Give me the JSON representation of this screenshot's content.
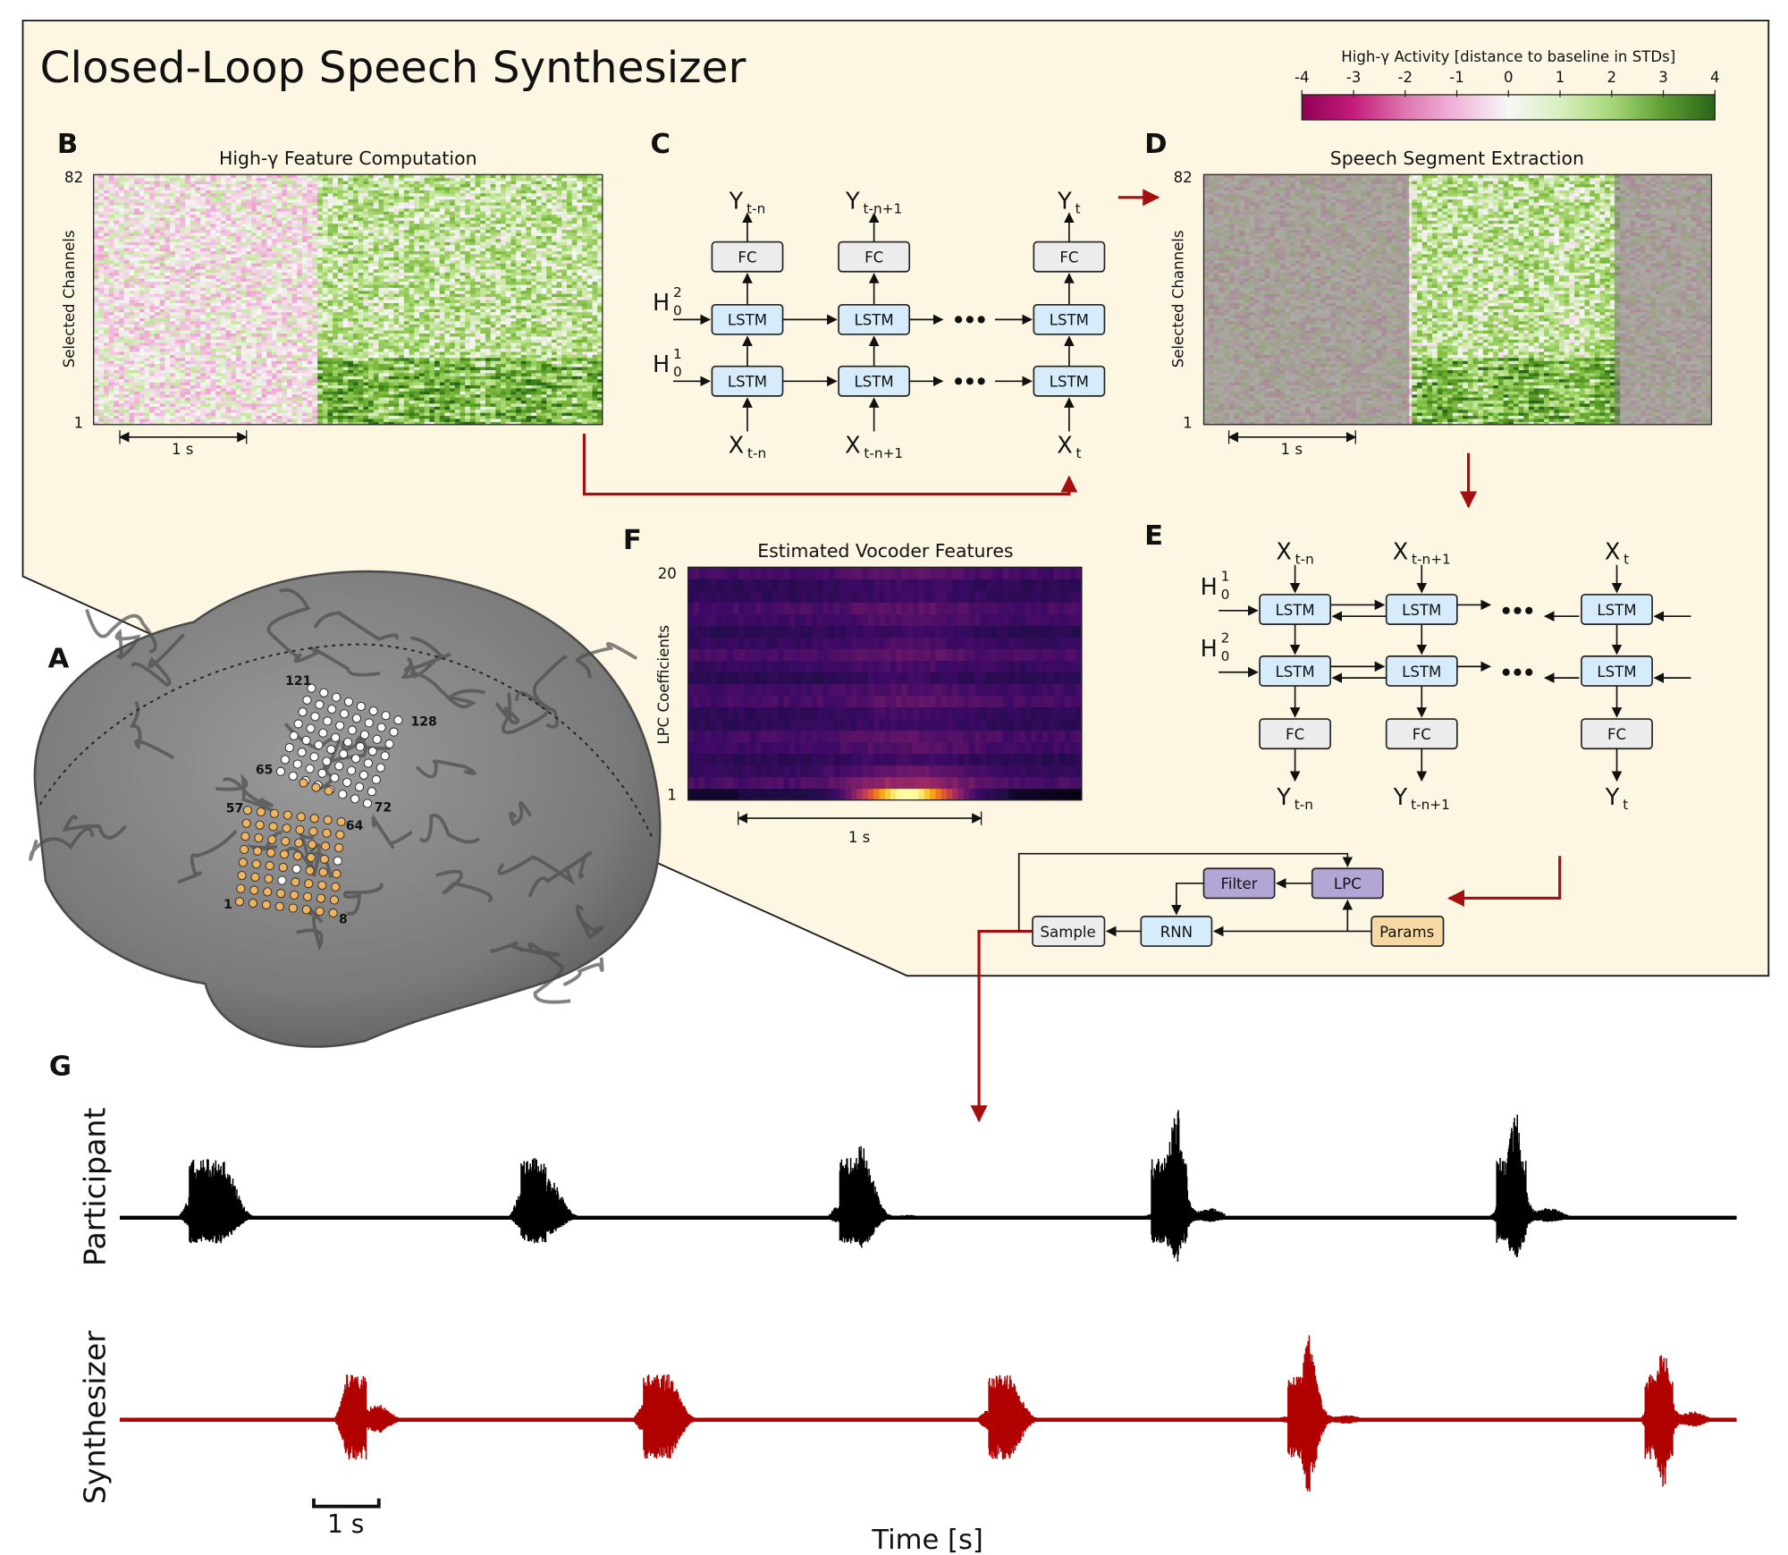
{
  "title": "Closed-Loop Speech Synthesizer",
  "colorbar": {
    "label": "High-γ Activity [distance to baseline in STDs]",
    "ticks": [
      "-4",
      "-3",
      "-2",
      "-1",
      "0",
      "1",
      "2",
      "3",
      "4"
    ],
    "range": [
      -4,
      4
    ],
    "colormap": "PiYG",
    "colors": [
      "#8e0152",
      "#c51b7d",
      "#de77ae",
      "#f1b6da",
      "#f7f7f7",
      "#b8e186",
      "#7fbc41",
      "#4d9221",
      "#276419"
    ]
  },
  "panels": {
    "A": {
      "label": "A",
      "electrode_labels": [
        "121",
        "128",
        "65",
        "72",
        "57",
        "64",
        "1",
        "8"
      ]
    },
    "B": {
      "label": "B",
      "title": "High-γ Feature Computation",
      "ylabel": "Selected Channels",
      "yticks": [
        "82",
        "1"
      ],
      "scalebar": "1 s"
    },
    "C": {
      "label": "C",
      "fc": "FC",
      "lstm": "LSTM",
      "h_top": {
        "base": "H",
        "sup": "2",
        "sub": "0"
      },
      "h_bottom": {
        "base": "H",
        "sup": "1",
        "sub": "0"
      },
      "outputs": [
        {
          "base": "Y",
          "sub": "t-n"
        },
        {
          "base": "Y",
          "sub": "t-n+1"
        },
        {
          "base": "Y",
          "sub": "t"
        }
      ],
      "inputs": [
        {
          "base": "X",
          "sub": "t-n"
        },
        {
          "base": "X",
          "sub": "t-n+1"
        },
        {
          "base": "X",
          "sub": "t"
        }
      ]
    },
    "D": {
      "label": "D",
      "title": "Speech Segment Extraction",
      "ylabel": "Selected Channels",
      "yticks": [
        "82",
        "1"
      ],
      "scalebar": "1 s"
    },
    "E": {
      "label": "E",
      "fc": "FC",
      "lstm": "LSTM",
      "h_top": {
        "base": "H",
        "sup": "1",
        "sub": "0"
      },
      "h_bottom": {
        "base": "H",
        "sup": "2",
        "sub": "0"
      },
      "inputs": [
        {
          "base": "X",
          "sub": "t-n"
        },
        {
          "base": "X",
          "sub": "t-n+1"
        },
        {
          "base": "X",
          "sub": "t"
        }
      ],
      "outputs": [
        {
          "base": "Y",
          "sub": "t-n"
        },
        {
          "base": "Y",
          "sub": "t-n+1"
        },
        {
          "base": "Y",
          "sub": "t"
        }
      ]
    },
    "F": {
      "label": "F",
      "title": "Estimated Vocoder Features",
      "ylabel": "LPC Coefficients",
      "yticks": [
        "20",
        "1"
      ],
      "scalebar": "1 s",
      "colormap": "inferno"
    },
    "vocoder": {
      "filter": "Filter",
      "lpc": "LPC",
      "sample": "Sample",
      "rnn": "RNN",
      "params": "Params",
      "colors": {
        "lpc_filter": "#b3a6d4",
        "rnn": "#d6ecfb",
        "sample": "#ececec",
        "params": "#f6d9a2"
      }
    },
    "G": {
      "label": "G",
      "participant_label": "Participant",
      "synthesizer_label": "Synthesizer",
      "scalebar": "1 s",
      "xlabel": "Time [s]",
      "participant_color": "#000000",
      "synthesizer_color": "#b00000",
      "participant_onsets_s": [
        1.3,
        6.4,
        11.3,
        16.1,
        21.4
      ],
      "synthesizer_onsets_s": [
        3.7,
        8.3,
        13.6,
        18.2,
        23.7
      ]
    }
  },
  "accent_color": "#a50f0f",
  "panel_background": "#fdf6e3"
}
